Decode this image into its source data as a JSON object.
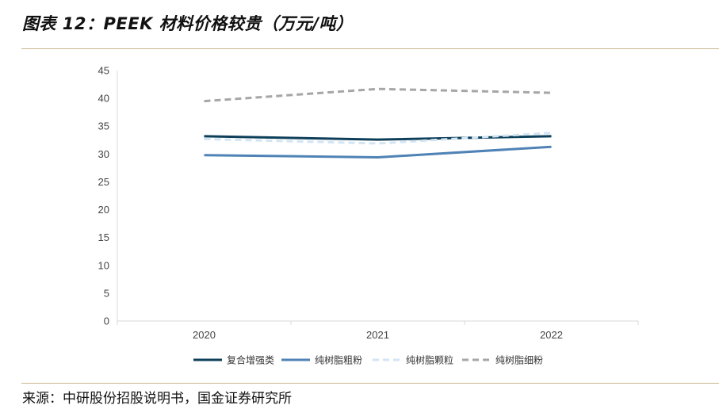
{
  "title": "图表 12：PEEK 材料价格较贵（万元/吨）",
  "source": "来源：中研股份招股说明书，国金证券研究所",
  "chart_data": {
    "type": "line",
    "title": "PEEK 材料价格较贵（万元/吨）",
    "x": [
      "2020",
      "2021",
      "2022"
    ],
    "ylim": [
      0,
      45
    ],
    "yticks": [
      0,
      5,
      10,
      15,
      20,
      25,
      30,
      35,
      40,
      45
    ],
    "grid": false,
    "legend_position": "bottom",
    "series": [
      {
        "name": "复合增强类",
        "values": [
          33.2,
          32.6,
          33.2
        ],
        "color": "#0e3f5a",
        "style": "solid"
      },
      {
        "name": "纯树脂粗粉",
        "values": [
          29.8,
          29.4,
          31.3
        ],
        "color": "#4f82b5",
        "style": "solid"
      },
      {
        "name": "纯树脂颗粒",
        "values": [
          32.7,
          31.9,
          33.8
        ],
        "color": "#d3e5f3",
        "style": "dashed"
      },
      {
        "name": "纯树脂细粉",
        "values": [
          39.5,
          41.7,
          41.0
        ],
        "color": "#a6a6a6",
        "style": "dashed"
      }
    ]
  }
}
